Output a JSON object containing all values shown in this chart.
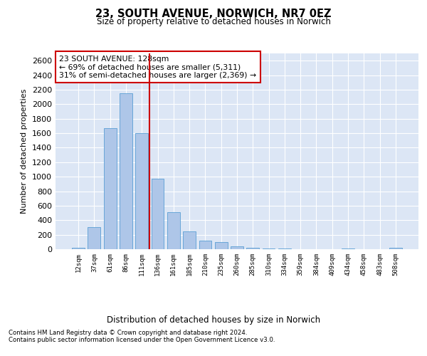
{
  "title": "23, SOUTH AVENUE, NORWICH, NR7 0EZ",
  "subtitle": "Size of property relative to detached houses in Norwich",
  "xlabel": "Distribution of detached houses by size in Norwich",
  "ylabel": "Number of detached properties",
  "categories": [
    "12sqm",
    "37sqm",
    "61sqm",
    "86sqm",
    "111sqm",
    "136sqm",
    "161sqm",
    "185sqm",
    "210sqm",
    "235sqm",
    "260sqm",
    "285sqm",
    "310sqm",
    "334sqm",
    "359sqm",
    "384sqm",
    "409sqm",
    "434sqm",
    "458sqm",
    "483sqm",
    "508sqm"
  ],
  "values": [
    20,
    300,
    1670,
    2150,
    1600,
    970,
    510,
    245,
    120,
    95,
    40,
    20,
    10,
    5,
    3,
    2,
    2,
    5,
    2,
    2,
    20
  ],
  "bar_color": "#aec6e8",
  "bar_edge_color": "#5a9fd4",
  "vline_x": 4.5,
  "vline_color": "#cc0000",
  "annotation_text": "23 SOUTH AVENUE: 128sqm\n← 69% of detached houses are smaller (5,311)\n31% of semi-detached houses are larger (2,369) →",
  "annotation_box_color": "#ffffff",
  "annotation_box_edge": "#cc0000",
  "ylim": [
    0,
    2700
  ],
  "yticks": [
    0,
    200,
    400,
    600,
    800,
    1000,
    1200,
    1400,
    1600,
    1800,
    2000,
    2200,
    2400,
    2600
  ],
  "bg_color": "#dce6f5",
  "footer_line1": "Contains HM Land Registry data © Crown copyright and database right 2024.",
  "footer_line2": "Contains public sector information licensed under the Open Government Licence v3.0."
}
